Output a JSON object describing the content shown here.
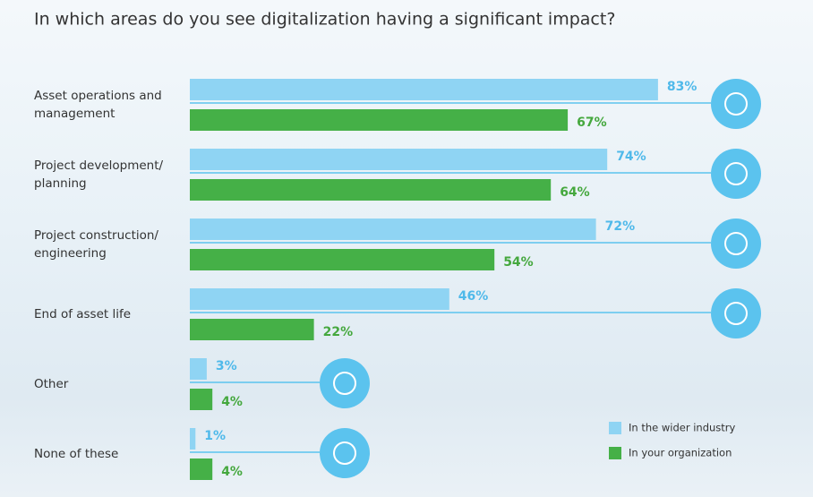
{
  "chart_data": {
    "type": "bar",
    "orientation": "horizontal",
    "title": "In which areas do you see digitalization having a significant impact?",
    "categories": [
      "Asset operations and management",
      "Project development/ planning",
      "Project construction/ engineering",
      "End of asset life",
      "Other",
      "None of these"
    ],
    "series": [
      {
        "name": "In the wider industry",
        "color": "#8fd4f3",
        "label_color": "#4fb9ea",
        "values": [
          83,
          74,
          72,
          46,
          3,
          1
        ],
        "value_labels": [
          "83%",
          "74%",
          "72%",
          "46%",
          "3%",
          "1%"
        ]
      },
      {
        "name": "In your organization",
        "color": "#45b047",
        "label_color": "#45a83e",
        "values": [
          67,
          64,
          54,
          22,
          4,
          4
        ],
        "value_labels": [
          "67%",
          "64%",
          "54%",
          "22%",
          "4%",
          "4%"
        ]
      }
    ],
    "legend": "bottom-right"
  }
}
